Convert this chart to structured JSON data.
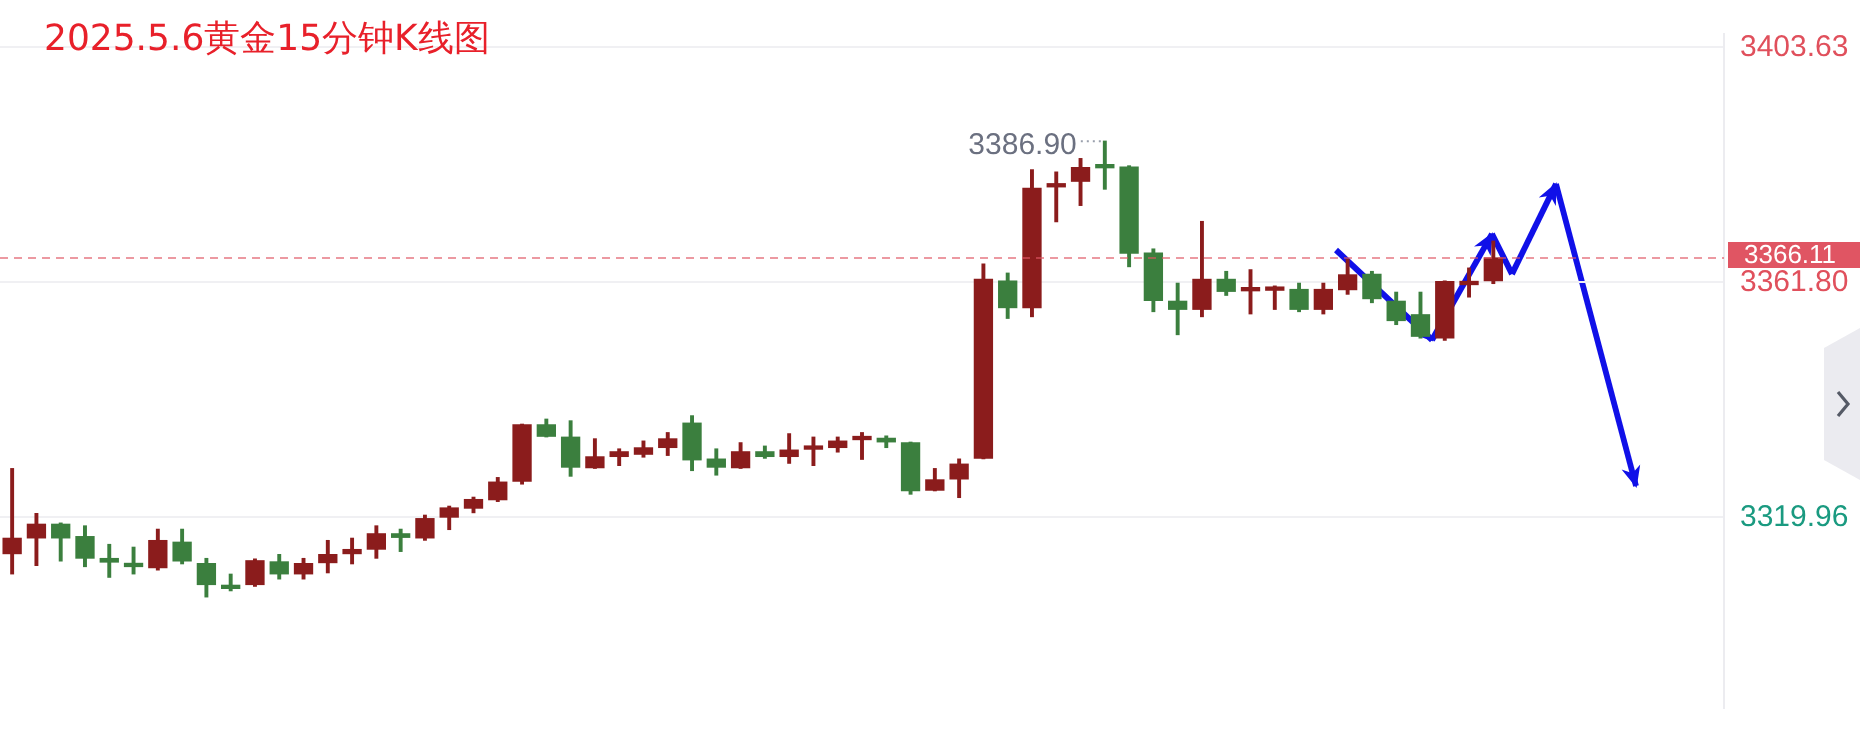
{
  "chart_data": {
    "type": "candlestick",
    "title": "2025.5.6黄金15分钟K线图",
    "categories": [
      null,
      null,
      null,
      null,
      null,
      null,
      null,
      null,
      null,
      null,
      null,
      null,
      null,
      null,
      null,
      null,
      null,
      null,
      null,
      null,
      null,
      null,
      null,
      null,
      null,
      null,
      null,
      null,
      null,
      null,
      null,
      null,
      null,
      null,
      null,
      null,
      null,
      null,
      null,
      null,
      null,
      null,
      null,
      null,
      null,
      null,
      null,
      null,
      null,
      null,
      null,
      null,
      null,
      null,
      null,
      null,
      null,
      null,
      null,
      null,
      null,
      null,
      null,
      null,
      null,
      null,
      null,
      null,
      null,
      null,
      null
    ],
    "ohlc": [
      [
        3313.5,
        3328.6,
        3309.9,
        3316.2
      ],
      [
        3316.3,
        3320.6,
        3311.4,
        3318.7
      ],
      [
        3318.7,
        3318.9,
        3312.2,
        3316.3
      ],
      [
        3316.5,
        3318.4,
        3311.2,
        3312.7
      ],
      [
        3312.6,
        3315.1,
        3309.3,
        3312.0
      ],
      [
        3311.7,
        3314.6,
        3309.9,
        3311.2
      ],
      [
        3311.0,
        3317.8,
        3310.6,
        3315.8
      ],
      [
        3315.5,
        3317.8,
        3311.7,
        3312.2
      ],
      [
        3311.7,
        3312.6,
        3305.8,
        3308.0
      ],
      [
        3307.7,
        3309.8,
        3306.9,
        3307.3
      ],
      [
        3308.0,
        3312.5,
        3307.7,
        3312.2
      ],
      [
        3312.0,
        3313.3,
        3309.0,
        3309.9
      ],
      [
        3309.9,
        3312.6,
        3309.0,
        3311.7
      ],
      [
        3311.9,
        3315.8,
        3310.1,
        3313.3
      ],
      [
        3313.5,
        3316.2,
        3311.7,
        3314.2
      ],
      [
        3314.3,
        3318.4,
        3312.7,
        3317.0
      ],
      [
        3317.0,
        3317.8,
        3313.9,
        3316.4
      ],
      [
        3316.3,
        3320.3,
        3315.9,
        3319.7
      ],
      [
        3320.0,
        3321.9,
        3317.8,
        3321.6
      ],
      [
        3321.6,
        3323.5,
        3320.8,
        3323.1
      ],
      [
        3323.1,
        3327.0,
        3322.8,
        3326.2
      ],
      [
        3326.4,
        3336.5,
        3325.9,
        3336.4
      ],
      [
        3336.4,
        3337.4,
        3334.3,
        3334.4
      ],
      [
        3334.2,
        3337.1,
        3327.3,
        3328.9
      ],
      [
        3328.8,
        3333.9,
        3328.7,
        3330.7
      ],
      [
        3330.8,
        3332.1,
        3329.2,
        3331.6
      ],
      [
        3331.2,
        3333.5,
        3330.7,
        3332.3
      ],
      [
        3332.4,
        3335.0,
        3331.0,
        3333.9
      ],
      [
        3336.7,
        3338.0,
        3328.3,
        3330.2
      ],
      [
        3330.3,
        3332.1,
        3327.5,
        3328.9
      ],
      [
        3328.8,
        3333.2,
        3328.7,
        3331.6
      ],
      [
        3331.6,
        3332.6,
        3330.5,
        3330.8
      ],
      [
        3330.8,
        3334.8,
        3329.6,
        3331.9
      ],
      [
        3332.1,
        3334.2,
        3329.2,
        3332.3
      ],
      [
        3332.4,
        3334.2,
        3331.6,
        3333.5
      ],
      [
        3333.8,
        3335.0,
        3330.3,
        3334.0
      ],
      [
        3334.0,
        3334.4,
        3332.4,
        3333.4
      ],
      [
        3333.2,
        3333.3,
        3324.1,
        3324.7
      ],
      [
        3324.8,
        3328.6,
        3324.7,
        3326.6
      ],
      [
        3326.8,
        3330.3,
        3323.5,
        3329.4
      ],
      [
        3330.5,
        3365.0,
        3330.4,
        3362.3
      ],
      [
        3362.0,
        3363.4,
        3355.4,
        3357.3
      ],
      [
        3357.3,
        3381.8,
        3355.7,
        3378.5
      ],
      [
        3378.8,
        3381.4,
        3372.6,
        3379.3
      ],
      [
        3379.8,
        3383.8,
        3375.5,
        3382.2
      ],
      [
        3382.5,
        3386.9,
        3378.4,
        3382.2
      ],
      [
        3382.3,
        3382.5,
        3364.6,
        3367.0
      ],
      [
        3367.0,
        3367.7,
        3356.6,
        3358.6
      ],
      [
        3358.4,
        3361.6,
        3352.5,
        3357.0
      ],
      [
        3357.0,
        3372.6,
        3355.7,
        3362.3
      ],
      [
        3362.3,
        3363.7,
        3359.5,
        3360.2
      ],
      [
        3360.3,
        3364.0,
        3356.2,
        3360.5
      ],
      [
        3360.4,
        3361.1,
        3357.0,
        3360.5
      ],
      [
        3360.5,
        3361.6,
        3356.6,
        3357.0
      ],
      [
        3357.0,
        3361.6,
        3356.2,
        3360.5
      ],
      [
        3360.5,
        3365.9,
        3359.7,
        3363.1
      ],
      [
        3363.2,
        3363.7,
        3358.2,
        3358.9
      ],
      [
        3358.4,
        3360.0,
        3354.3,
        3355.0
      ],
      [
        3356.0,
        3360.0,
        3351.9,
        3352.2
      ],
      [
        3351.9,
        3362.0,
        3351.5,
        3361.9
      ],
      [
        3361.4,
        3364.3,
        3359.2,
        3361.8
      ],
      [
        3362.1,
        3369.1,
        3361.6,
        3366.11
      ],
      null,
      null,
      null,
      null,
      null,
      null,
      null,
      null,
      null
    ],
    "colors": [
      "#8b1c1c",
      "#8b1c1c",
      "#3b7f3e",
      "#3b7f3e",
      "#3b7f3e",
      "#3b7f3e",
      "#8b1c1c",
      "#3b7f3e",
      "#3b7f3e",
      "#3b7f3e",
      "#8b1c1c",
      "#3b7f3e",
      "#8b1c1c",
      "#8b1c1c",
      "#8b1c1c",
      "#8b1c1c",
      "#3b7f3e",
      "#8b1c1c",
      "#8b1c1c",
      "#8b1c1c",
      "#8b1c1c",
      "#8b1c1c",
      "#3b7f3e",
      "#3b7f3e",
      "#8b1c1c",
      "#8b1c1c",
      "#8b1c1c",
      "#8b1c1c",
      "#3b7f3e",
      "#3b7f3e",
      "#8b1c1c",
      "#3b7f3e",
      "#8b1c1c",
      "#8b1c1c",
      "#8b1c1c",
      "#8b1c1c",
      "#3b7f3e",
      "#3b7f3e",
      "#8b1c1c",
      "#8b1c1c",
      "#8b1c1c",
      "#3b7f3e",
      "#8b1c1c",
      "#8b1c1c",
      "#8b1c1c",
      "#3b7f3e",
      "#3b7f3e",
      "#3b7f3e",
      "#3b7f3e",
      "#8b1c1c",
      "#3b7f3e",
      "#8b1c1c",
      "#8b1c1c",
      "#3b7f3e",
      "#8b1c1c",
      "#8b1c1c",
      "#3b7f3e",
      "#3b7f3e",
      "#3b7f3e",
      "#8b1c1c",
      "#8b1c1c",
      "#8b1c1c",
      null,
      null,
      null,
      null,
      null,
      null,
      null,
      null,
      null
    ],
    "ylim": [
      3286,
      3406
    ],
    "yticks": [
      {
        "value": 3319.96,
        "label": "3319.96"
      },
      {
        "value": 3361.8,
        "label": "3361.80"
      },
      {
        "value": 3403.63,
        "label": "3403.63"
      }
    ],
    "grid": "y",
    "ref_lines": [
      {
        "axis": "y",
        "value": 3366.11,
        "label": "3366.11",
        "color": "#e05563",
        "line_style": "dashed"
      }
    ],
    "annotations": [
      "3386.90"
    ]
  }
}
